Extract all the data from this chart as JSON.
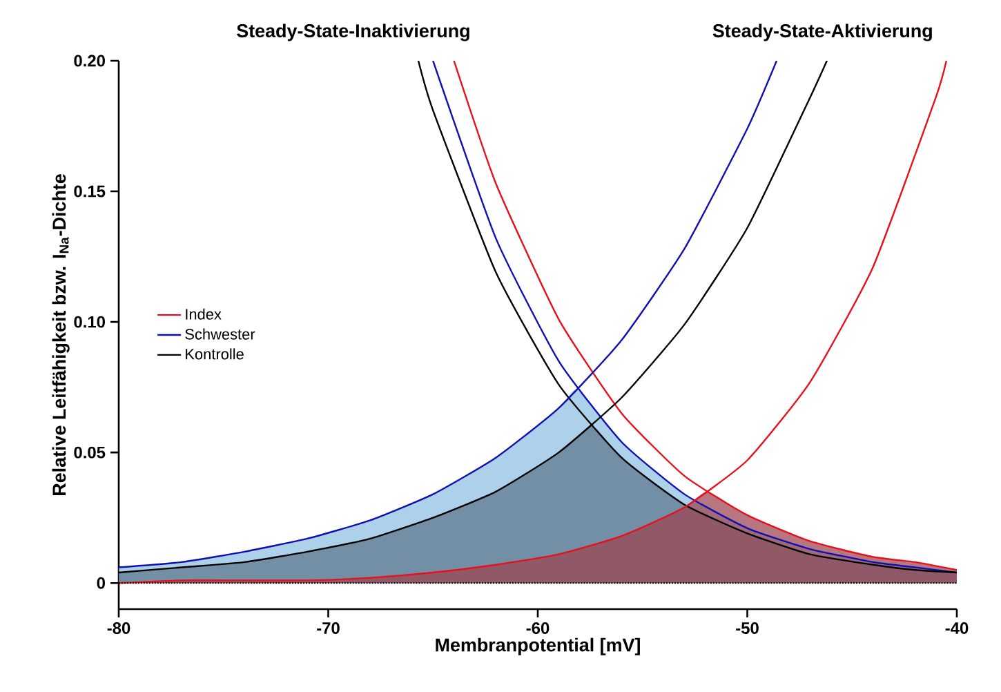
{
  "chart_data": {
    "type": "line",
    "xlabel": "Membranpotential [mV]",
    "ylabel": "Relative Leitfähigkeit bzw. I$_{Na}$-Dichte",
    "annotations": [
      "Steady-State-Inaktivierung",
      "Steady-State-Aktivierung"
    ],
    "xlim": [
      -80,
      -40
    ],
    "xticks": [
      -80,
      -70,
      -60,
      -50,
      -40
    ],
    "ylim": [
      -0.01,
      0.2
    ],
    "yticks": [
      0,
      0.05,
      {
        "value": 0.1,
        "label": "0.10"
      },
      0.15,
      {
        "value": 0.2,
        "label": "0.20"
      }
    ],
    "legend": "left",
    "ref_lines": [
      {
        "axis": "y",
        "value": 0,
        "color": "#000000",
        "line_style": "dotted"
      }
    ],
    "series": [
      {
        "type": "area",
        "color": "#8fbfe3",
        "x": [
          -80,
          -77,
          -74,
          -71,
          -68,
          -65,
          -62,
          -59,
          -58.1,
          -56,
          -53,
          -50,
          -47,
          -44,
          -42,
          -40
        ],
        "values": [
          0.006,
          0.008,
          0.012,
          0.017,
          0.024,
          0.034,
          0.048,
          0.067,
          0.074,
          0.054,
          0.034,
          0.021,
          0.013,
          0.008,
          0.006,
          0.004
        ]
      },
      {
        "type": "area",
        "color": "#5d7689",
        "x": [
          -80,
          -77,
          -74,
          -71,
          -68,
          -65,
          -62,
          -59,
          -57.4,
          -56,
          -53,
          -50,
          -47,
          -44,
          -42,
          -40
        ],
        "values": [
          0.004,
          0.006,
          0.008,
          0.012,
          0.017,
          0.025,
          0.035,
          0.05,
          0.06,
          0.048,
          0.03,
          0.019,
          0.011,
          0.007,
          0.005,
          0.004
        ]
      },
      {
        "type": "area",
        "color": "#9c434f",
        "x": [
          -80,
          -77,
          -74,
          -71,
          -68,
          -65,
          -62,
          -59,
          -56,
          -53,
          -51.9,
          -50,
          -47,
          -44,
          -42,
          -40
        ],
        "values": [
          0.0,
          0.001,
          0.001,
          0.001,
          0.002,
          0.004,
          0.007,
          0.011,
          0.018,
          0.029,
          0.035,
          0.026,
          0.016,
          0.01,
          0.008,
          0.005
        ]
      },
      {
        "name": "Index",
        "color": "#e8101a",
        "x": [
          -64.0,
          -62,
          -59,
          -56,
          -53,
          -50,
          -47,
          -44,
          -42,
          -40
        ],
        "values": [
          0.2,
          0.153,
          0.101,
          0.065,
          0.041,
          0.026,
          0.016,
          0.01,
          0.008,
          0.005
        ]
      },
      {
        "name": "Schwester",
        "color": "#1010b0",
        "x": [
          -65.0,
          -62,
          -59,
          -56,
          -53,
          -50,
          -47,
          -44,
          -42,
          -40
        ],
        "values": [
          0.2,
          0.132,
          0.085,
          0.054,
          0.034,
          0.021,
          0.013,
          0.008,
          0.006,
          0.004
        ]
      },
      {
        "name": "Kontrolle",
        "color": "#000000",
        "x": [
          -65.7,
          -65,
          -62,
          -59,
          -56,
          -53,
          -50,
          -47,
          -44,
          -42,
          -40
        ],
        "values": [
          0.2,
          0.181,
          0.119,
          0.076,
          0.048,
          0.03,
          0.019,
          0.011,
          0.007,
          0.005,
          0.004
        ]
      },
      {
        "color": "#e8101a",
        "x": [
          -80,
          -77,
          -74,
          -71,
          -68,
          -65,
          -62,
          -59,
          -56,
          -53,
          -50,
          -47,
          -44,
          -41,
          -40.5
        ],
        "values": [
          0.0,
          0.001,
          0.001,
          0.001,
          0.002,
          0.004,
          0.007,
          0.011,
          0.018,
          0.029,
          0.047,
          0.077,
          0.121,
          0.186,
          0.2
        ]
      },
      {
        "color": "#1010b0",
        "x": [
          -80,
          -77,
          -74,
          -71,
          -68,
          -65,
          -62,
          -59,
          -56,
          -53,
          -50,
          -48.6
        ],
        "values": [
          0.006,
          0.008,
          0.012,
          0.017,
          0.024,
          0.034,
          0.048,
          0.067,
          0.093,
          0.128,
          0.174,
          0.2
        ]
      },
      {
        "color": "#000000",
        "x": [
          -80,
          -77,
          -74,
          -71,
          -68,
          -65,
          -62,
          -59,
          -56,
          -53,
          -50,
          -47,
          -46.2
        ],
        "values": [
          0.004,
          0.006,
          0.008,
          0.012,
          0.017,
          0.025,
          0.035,
          0.05,
          0.071,
          0.099,
          0.136,
          0.186,
          0.2
        ]
      }
    ]
  }
}
